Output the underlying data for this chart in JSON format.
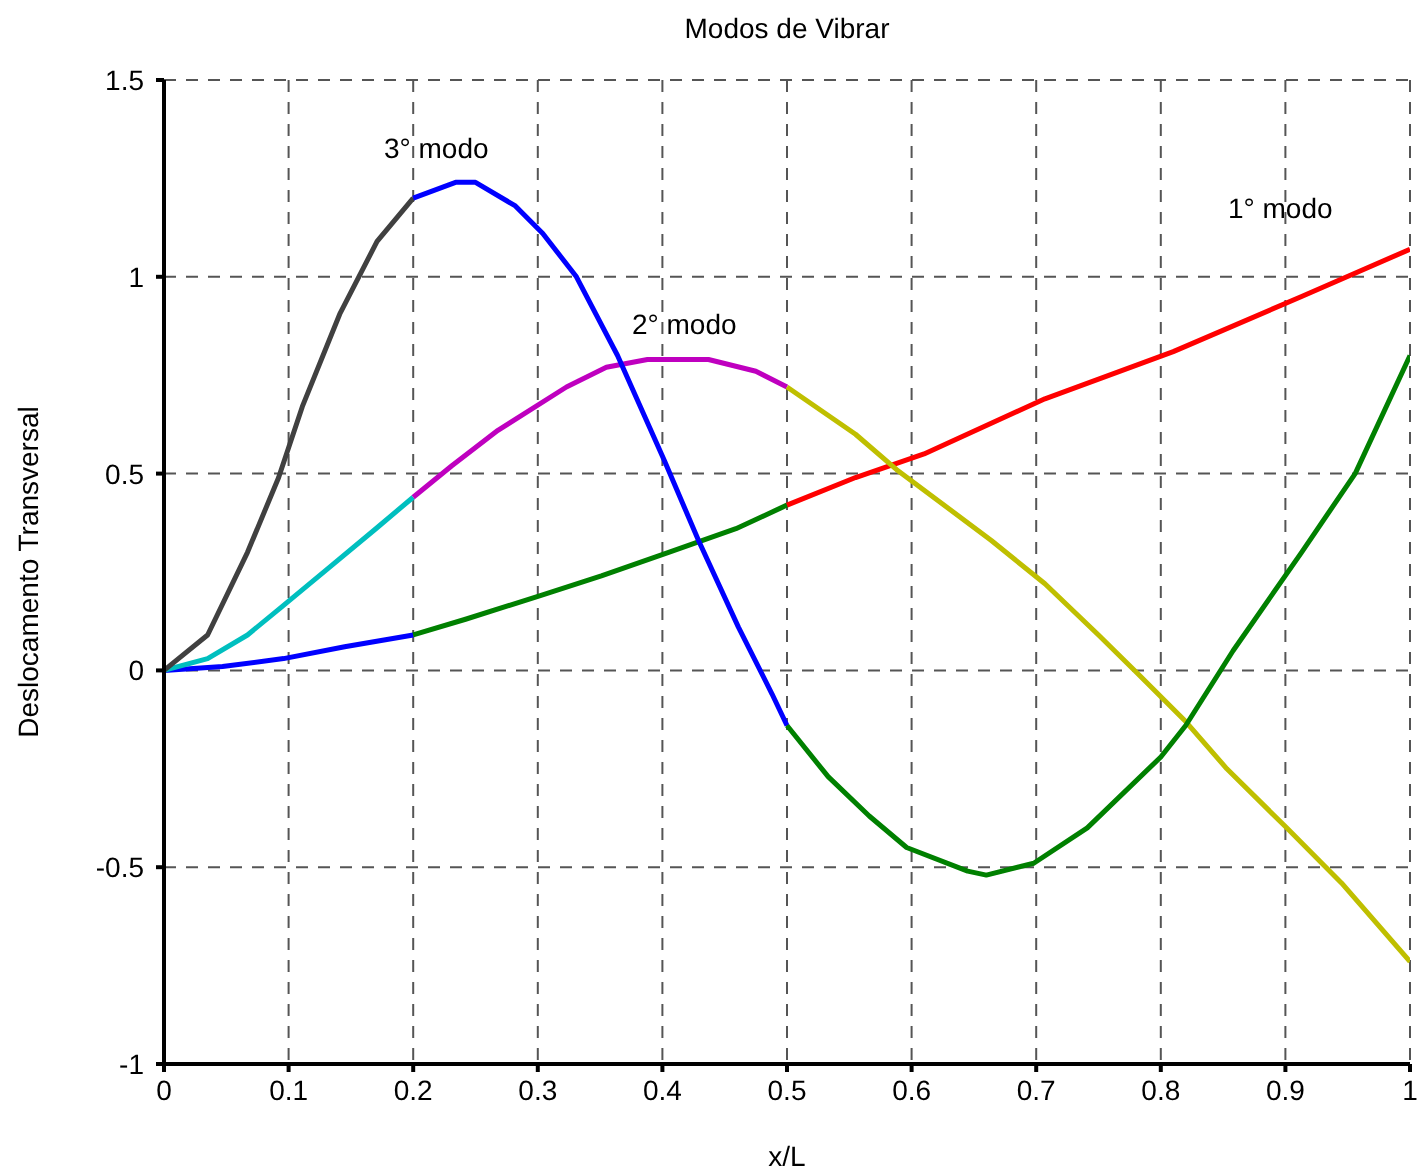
{
  "chart_data": {
    "type": "line",
    "title": "Modos de Vibrar",
    "xlabel": "x/L",
    "ylabel": "Deslocamento Transversal",
    "xlim": [
      0,
      1
    ],
    "xticks": [
      0,
      0.1,
      0.2,
      0.3,
      0.4,
      0.5,
      0.6,
      0.7,
      0.8,
      0.9,
      1
    ],
    "ylim": [
      -1,
      1.5
    ],
    "yticks": [
      -1,
      -0.5,
      0,
      0.5,
      1,
      1.5
    ],
    "grid": true,
    "legend": false,
    "marker": "none",
    "line_style": "solid",
    "annotations": [
      "3° modo",
      "2° modo",
      "1° modo"
    ],
    "series": [
      {
        "color": "#0000ff",
        "x": [
          0,
          0.047,
          0.096,
          0.145,
          0.2
        ],
        "values": [
          0,
          0.01,
          0.03,
          0.06,
          0.09
        ]
      },
      {
        "color": "#008000",
        "x": [
          0.2,
          0.242,
          0.302,
          0.351,
          0.405,
          0.459,
          0.5
        ],
        "values": [
          0.09,
          0.13,
          0.19,
          0.24,
          0.3,
          0.36,
          0.42
        ]
      },
      {
        "color": "#ff0000",
        "x": [
          0.5,
          0.555,
          0.61,
          0.707,
          0.81,
          0.913,
          1
        ],
        "values": [
          0.42,
          0.49,
          0.55,
          0.69,
          0.81,
          0.95,
          1.07
        ]
      },
      {
        "color": "#00bfbf",
        "x": [
          0,
          0.035,
          0.067,
          0.094,
          0.132,
          0.17,
          0.2
        ],
        "values": [
          0,
          0.03,
          0.09,
          0.16,
          0.26,
          0.36,
          0.44
        ]
      },
      {
        "color": "#bf00bf",
        "x": [
          0.2,
          0.231,
          0.268,
          0.323,
          0.355,
          0.388,
          0.437,
          0.475,
          0.5
        ],
        "values": [
          0.44,
          0.52,
          0.61,
          0.72,
          0.77,
          0.79,
          0.79,
          0.76,
          0.72
        ]
      },
      {
        "color": "#bfbf00",
        "x": [
          0.5,
          0.555,
          0.588,
          0.664,
          0.707,
          0.75,
          0.782,
          0.82,
          0.853,
          0.901,
          0.945,
          1
        ],
        "values": [
          0.72,
          0.6,
          0.51,
          0.33,
          0.22,
          0.09,
          -0.01,
          -0.13,
          -0.25,
          -0.4,
          -0.54,
          -0.74
        ]
      },
      {
        "color": "#404040",
        "x": [
          0,
          0.035,
          0.067,
          0.092,
          0.111,
          0.141,
          0.171,
          0.2
        ],
        "values": [
          0,
          0.09,
          0.3,
          0.49,
          0.67,
          0.905,
          1.09,
          1.2
        ]
      },
      {
        "color": "#0000ff",
        "x": [
          0.2,
          0.234,
          0.25,
          0.282,
          0.304,
          0.331,
          0.364,
          0.402,
          0.429,
          0.461,
          0.488,
          0.5
        ],
        "values": [
          1.2,
          1.24,
          1.24,
          1.18,
          1.11,
          1.0,
          0.8,
          0.53,
          0.33,
          0.11,
          -0.06,
          -0.14
        ]
      },
      {
        "color": "#008000",
        "x": [
          0.5,
          0.533,
          0.566,
          0.596,
          0.645,
          0.66,
          0.698,
          0.741,
          0.8,
          0.82,
          0.858,
          0.913,
          0.956,
          1
        ],
        "values": [
          -0.14,
          -0.27,
          -0.37,
          -0.45,
          -0.51,
          -0.52,
          -0.49,
          -0.4,
          -0.22,
          -0.14,
          0.05,
          0.3,
          0.5,
          0.8
        ]
      }
    ]
  }
}
